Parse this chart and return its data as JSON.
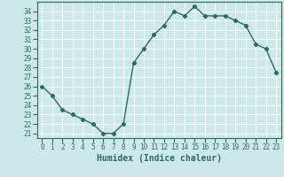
{
  "title": "",
  "xlabel": "Humidex (Indice chaleur)",
  "ylabel": "",
  "x": [
    0,
    1,
    2,
    3,
    4,
    5,
    6,
    7,
    8,
    9,
    10,
    11,
    12,
    13,
    14,
    15,
    16,
    17,
    18,
    19,
    20,
    21,
    22,
    23
  ],
  "y": [
    26.0,
    25.0,
    23.5,
    23.0,
    22.5,
    22.0,
    21.0,
    21.0,
    22.0,
    28.5,
    30.0,
    31.5,
    32.5,
    34.0,
    33.5,
    34.5,
    33.5,
    33.5,
    33.5,
    33.0,
    32.5,
    30.5,
    30.0,
    27.5
  ],
  "line_color": "#2e6b5e",
  "bg_color": "#cce8e8",
  "grid_color": "#ffffff",
  "ylim": [
    20.5,
    35.0
  ],
  "xlim": [
    -0.5,
    23.5
  ],
  "yticks": [
    21,
    22,
    23,
    24,
    25,
    26,
    27,
    28,
    29,
    30,
    31,
    32,
    33,
    34
  ],
  "xticks": [
    0,
    1,
    2,
    3,
    4,
    5,
    6,
    7,
    8,
    9,
    10,
    11,
    12,
    13,
    14,
    15,
    16,
    17,
    18,
    19,
    20,
    21,
    22,
    23
  ],
  "marker": "D",
  "marker_size": 2.2,
  "line_width": 1.0,
  "tick_fontsize": 5.5,
  "xlabel_fontsize": 7.0
}
